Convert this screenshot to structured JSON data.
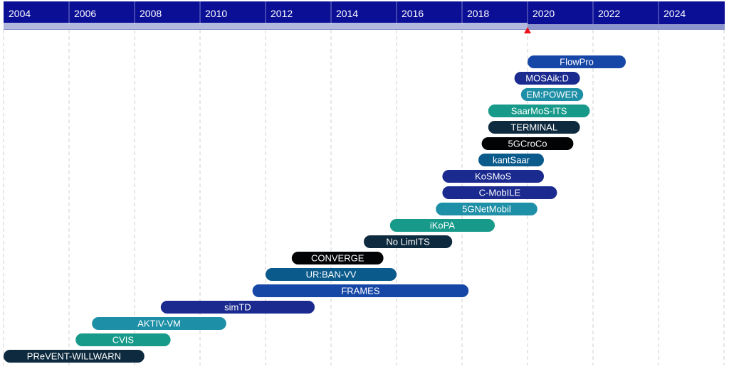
{
  "chart_data": {
    "type": "gantt-timeline",
    "x_axis": {
      "min": 2004,
      "max": 2026,
      "ticks": [
        "2004",
        "2006",
        "2008",
        "2010",
        "2012",
        "2014",
        "2016",
        "2018",
        "2020",
        "2022",
        "2024"
      ]
    },
    "current_marker": {
      "year": 2020.0,
      "progress_start": 2004,
      "progress_end": 2020.0
    },
    "grid": "vertical-dashed",
    "projects": [
      {
        "name": "FlowPro",
        "start": 2020.0,
        "end": 2023.0,
        "color": "#1747a6"
      },
      {
        "name": "MOSAik:D",
        "start": 2019.6,
        "end": 2021.6,
        "color": "#1a2a8f"
      },
      {
        "name": "EM:POWER",
        "start": 2019.8,
        "end": 2021.7,
        "color": "#1d8fa6"
      },
      {
        "name": "SaarMoS-ITS",
        "start": 2018.8,
        "end": 2021.9,
        "color": "#179a8a"
      },
      {
        "name": "TERMINAL",
        "start": 2018.8,
        "end": 2021.6,
        "color": "#0d2a3e"
      },
      {
        "name": "5GCroCo",
        "start": 2018.6,
        "end": 2021.4,
        "color": "#020305"
      },
      {
        "name": "kantSaar",
        "start": 2018.5,
        "end": 2020.5,
        "color": "#0a5a8c"
      },
      {
        "name": "KoSMoS",
        "start": 2017.4,
        "end": 2020.5,
        "color": "#1a2a8f"
      },
      {
        "name": "C-MobILE",
        "start": 2017.4,
        "end": 2020.9,
        "color": "#1a2a8f"
      },
      {
        "name": "5GNetMobil",
        "start": 2017.2,
        "end": 2020.3,
        "color": "#1d8fa6"
      },
      {
        "name": "iKoPA",
        "start": 2015.8,
        "end": 2019.0,
        "color": "#179a8a"
      },
      {
        "name": "No LimITS",
        "start": 2015.0,
        "end": 2017.7,
        "color": "#0d2a3e"
      },
      {
        "name": "CONVERGE",
        "start": 2012.8,
        "end": 2015.6,
        "color": "#020305"
      },
      {
        "name": "UR:BAN-VV",
        "start": 2012.0,
        "end": 2016.0,
        "color": "#0a5a8c"
      },
      {
        "name": "FRAMES",
        "start": 2011.6,
        "end": 2018.2,
        "color": "#1747a6"
      },
      {
        "name": "simTD",
        "start": 2008.8,
        "end": 2013.5,
        "color": "#1a2a8f"
      },
      {
        "name": "AKTIV-VM",
        "start": 2006.7,
        "end": 2010.8,
        "color": "#1d8fa6"
      },
      {
        "name": "CVIS",
        "start": 2006.2,
        "end": 2009.1,
        "color": "#179a8a"
      },
      {
        "name": "PReVENT-WILLWARN",
        "start": 2004.0,
        "end": 2008.3,
        "color": "#0d2a3e"
      }
    ]
  }
}
